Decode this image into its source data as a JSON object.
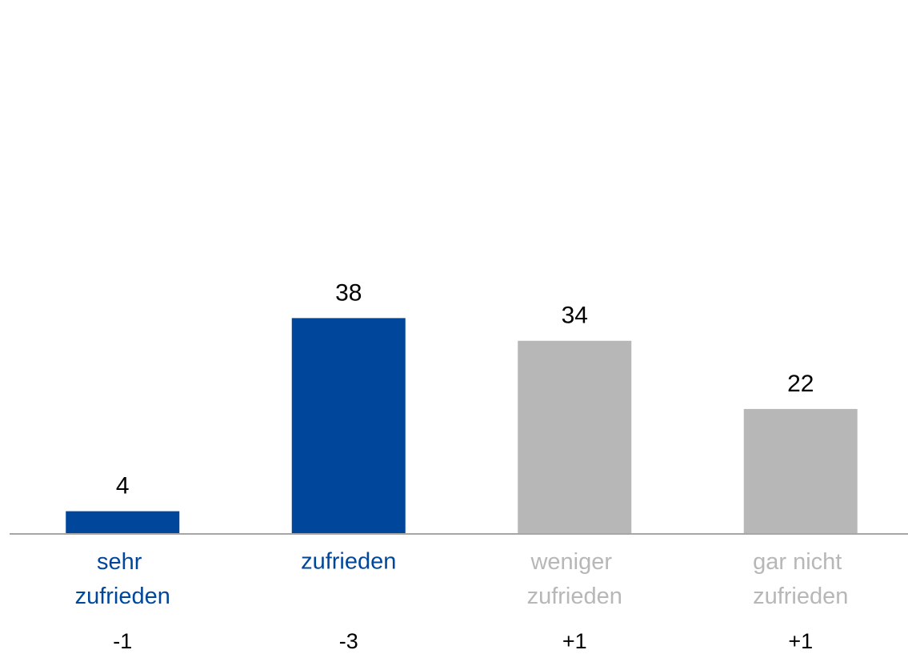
{
  "chart_data": {
    "type": "bar",
    "categories": [
      "sehr zufrieden",
      "zufrieden",
      "weniger zufrieden",
      "gar nicht zufrieden"
    ],
    "values": [
      4,
      38,
      34,
      22
    ],
    "colors": [
      "#00479b",
      "#00479b",
      "#b7b7b7",
      "#b7b7b7"
    ],
    "changes": [
      "-1",
      "-3",
      "+1",
      "+1"
    ],
    "ylim": [
      0,
      94
    ]
  }
}
